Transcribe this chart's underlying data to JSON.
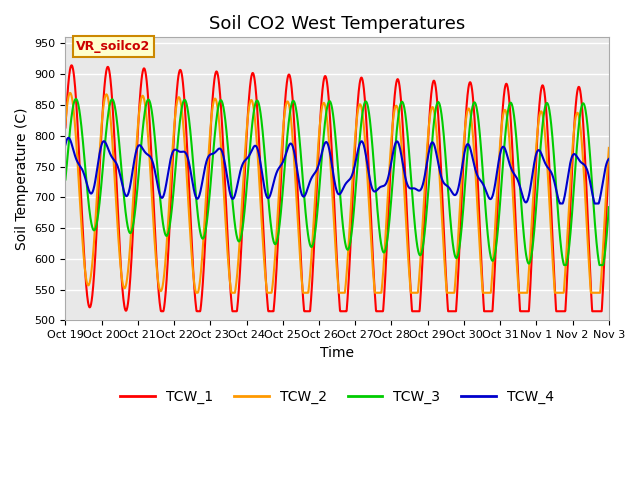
{
  "title": "Soil CO2 West Temperatures",
  "xlabel": "Time",
  "ylabel": "Soil Temperature (C)",
  "annotation": "VR_soilco2",
  "ylim": [
    500,
    960
  ],
  "yticks": [
    500,
    550,
    600,
    650,
    700,
    750,
    800,
    850,
    900,
    950
  ],
  "x_labels": [
    "Oct 19",
    "Oct 20",
    "Oct 21",
    "Oct 22",
    "Oct 23",
    "Oct 24",
    "Oct 25",
    "Oct 26",
    "Oct 27",
    "Oct 28",
    "Oct 29",
    "Oct 30",
    "Oct 31",
    "Nov 1",
    "Nov 2",
    "Nov 3"
  ],
  "colors": {
    "TCW_1": "#ff0000",
    "TCW_2": "#ff9900",
    "TCW_3": "#00cc00",
    "TCW_4": "#0000cc"
  },
  "plot_bg_color": "#e8e8e8",
  "annotation_bg": "#ffffcc",
  "annotation_border": "#cc8800",
  "annotation_text_color": "#cc0000",
  "title_fontsize": 13,
  "label_fontsize": 10,
  "tick_fontsize": 8
}
